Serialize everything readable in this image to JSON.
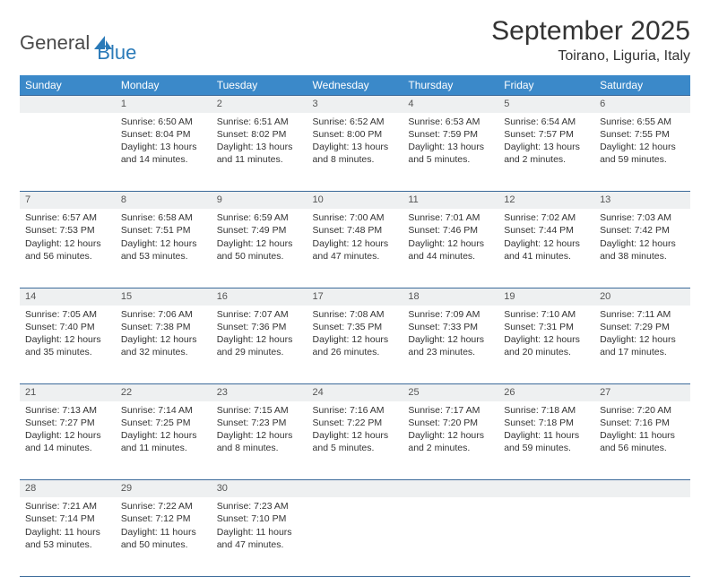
{
  "logo": {
    "text_a": "General",
    "text_b": "Blue"
  },
  "title": "September 2025",
  "location": "Toirano, Liguria, Italy",
  "header_bg": "#3b89c9",
  "header_fg": "#ffffff",
  "daynum_bg": "#eef0f1",
  "border_color": "#3b6a9a",
  "days_of_week": [
    "Sunday",
    "Monday",
    "Tuesday",
    "Wednesday",
    "Thursday",
    "Friday",
    "Saturday"
  ],
  "weeks": [
    [
      {
        "n": "",
        "sunrise": "",
        "sunset": "",
        "daylight": ""
      },
      {
        "n": "1",
        "sunrise": "Sunrise: 6:50 AM",
        "sunset": "Sunset: 8:04 PM",
        "daylight": "Daylight: 13 hours and 14 minutes."
      },
      {
        "n": "2",
        "sunrise": "Sunrise: 6:51 AM",
        "sunset": "Sunset: 8:02 PM",
        "daylight": "Daylight: 13 hours and 11 minutes."
      },
      {
        "n": "3",
        "sunrise": "Sunrise: 6:52 AM",
        "sunset": "Sunset: 8:00 PM",
        "daylight": "Daylight: 13 hours and 8 minutes."
      },
      {
        "n": "4",
        "sunrise": "Sunrise: 6:53 AM",
        "sunset": "Sunset: 7:59 PM",
        "daylight": "Daylight: 13 hours and 5 minutes."
      },
      {
        "n": "5",
        "sunrise": "Sunrise: 6:54 AM",
        "sunset": "Sunset: 7:57 PM",
        "daylight": "Daylight: 13 hours and 2 minutes."
      },
      {
        "n": "6",
        "sunrise": "Sunrise: 6:55 AM",
        "sunset": "Sunset: 7:55 PM",
        "daylight": "Daylight: 12 hours and 59 minutes."
      }
    ],
    [
      {
        "n": "7",
        "sunrise": "Sunrise: 6:57 AM",
        "sunset": "Sunset: 7:53 PM",
        "daylight": "Daylight: 12 hours and 56 minutes."
      },
      {
        "n": "8",
        "sunrise": "Sunrise: 6:58 AM",
        "sunset": "Sunset: 7:51 PM",
        "daylight": "Daylight: 12 hours and 53 minutes."
      },
      {
        "n": "9",
        "sunrise": "Sunrise: 6:59 AM",
        "sunset": "Sunset: 7:49 PM",
        "daylight": "Daylight: 12 hours and 50 minutes."
      },
      {
        "n": "10",
        "sunrise": "Sunrise: 7:00 AM",
        "sunset": "Sunset: 7:48 PM",
        "daylight": "Daylight: 12 hours and 47 minutes."
      },
      {
        "n": "11",
        "sunrise": "Sunrise: 7:01 AM",
        "sunset": "Sunset: 7:46 PM",
        "daylight": "Daylight: 12 hours and 44 minutes."
      },
      {
        "n": "12",
        "sunrise": "Sunrise: 7:02 AM",
        "sunset": "Sunset: 7:44 PM",
        "daylight": "Daylight: 12 hours and 41 minutes."
      },
      {
        "n": "13",
        "sunrise": "Sunrise: 7:03 AM",
        "sunset": "Sunset: 7:42 PM",
        "daylight": "Daylight: 12 hours and 38 minutes."
      }
    ],
    [
      {
        "n": "14",
        "sunrise": "Sunrise: 7:05 AM",
        "sunset": "Sunset: 7:40 PM",
        "daylight": "Daylight: 12 hours and 35 minutes."
      },
      {
        "n": "15",
        "sunrise": "Sunrise: 7:06 AM",
        "sunset": "Sunset: 7:38 PM",
        "daylight": "Daylight: 12 hours and 32 minutes."
      },
      {
        "n": "16",
        "sunrise": "Sunrise: 7:07 AM",
        "sunset": "Sunset: 7:36 PM",
        "daylight": "Daylight: 12 hours and 29 minutes."
      },
      {
        "n": "17",
        "sunrise": "Sunrise: 7:08 AM",
        "sunset": "Sunset: 7:35 PM",
        "daylight": "Daylight: 12 hours and 26 minutes."
      },
      {
        "n": "18",
        "sunrise": "Sunrise: 7:09 AM",
        "sunset": "Sunset: 7:33 PM",
        "daylight": "Daylight: 12 hours and 23 minutes."
      },
      {
        "n": "19",
        "sunrise": "Sunrise: 7:10 AM",
        "sunset": "Sunset: 7:31 PM",
        "daylight": "Daylight: 12 hours and 20 minutes."
      },
      {
        "n": "20",
        "sunrise": "Sunrise: 7:11 AM",
        "sunset": "Sunset: 7:29 PM",
        "daylight": "Daylight: 12 hours and 17 minutes."
      }
    ],
    [
      {
        "n": "21",
        "sunrise": "Sunrise: 7:13 AM",
        "sunset": "Sunset: 7:27 PM",
        "daylight": "Daylight: 12 hours and 14 minutes."
      },
      {
        "n": "22",
        "sunrise": "Sunrise: 7:14 AM",
        "sunset": "Sunset: 7:25 PM",
        "daylight": "Daylight: 12 hours and 11 minutes."
      },
      {
        "n": "23",
        "sunrise": "Sunrise: 7:15 AM",
        "sunset": "Sunset: 7:23 PM",
        "daylight": "Daylight: 12 hours and 8 minutes."
      },
      {
        "n": "24",
        "sunrise": "Sunrise: 7:16 AM",
        "sunset": "Sunset: 7:22 PM",
        "daylight": "Daylight: 12 hours and 5 minutes."
      },
      {
        "n": "25",
        "sunrise": "Sunrise: 7:17 AM",
        "sunset": "Sunset: 7:20 PM",
        "daylight": "Daylight: 12 hours and 2 minutes."
      },
      {
        "n": "26",
        "sunrise": "Sunrise: 7:18 AM",
        "sunset": "Sunset: 7:18 PM",
        "daylight": "Daylight: 11 hours and 59 minutes."
      },
      {
        "n": "27",
        "sunrise": "Sunrise: 7:20 AM",
        "sunset": "Sunset: 7:16 PM",
        "daylight": "Daylight: 11 hours and 56 minutes."
      }
    ],
    [
      {
        "n": "28",
        "sunrise": "Sunrise: 7:21 AM",
        "sunset": "Sunset: 7:14 PM",
        "daylight": "Daylight: 11 hours and 53 minutes."
      },
      {
        "n": "29",
        "sunrise": "Sunrise: 7:22 AM",
        "sunset": "Sunset: 7:12 PM",
        "daylight": "Daylight: 11 hours and 50 minutes."
      },
      {
        "n": "30",
        "sunrise": "Sunrise: 7:23 AM",
        "sunset": "Sunset: 7:10 PM",
        "daylight": "Daylight: 11 hours and 47 minutes."
      },
      {
        "n": "",
        "sunrise": "",
        "sunset": "",
        "daylight": ""
      },
      {
        "n": "",
        "sunrise": "",
        "sunset": "",
        "daylight": ""
      },
      {
        "n": "",
        "sunrise": "",
        "sunset": "",
        "daylight": ""
      },
      {
        "n": "",
        "sunrise": "",
        "sunset": "",
        "daylight": ""
      }
    ]
  ]
}
